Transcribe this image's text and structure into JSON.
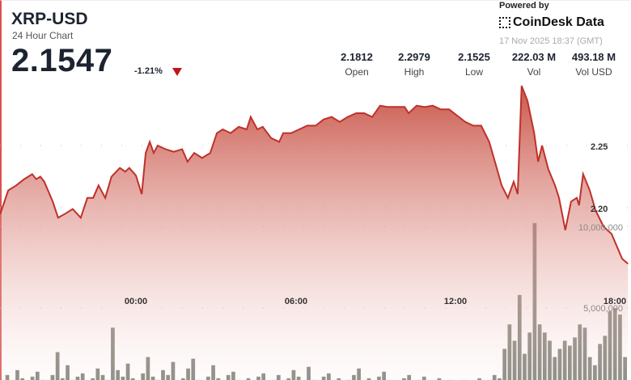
{
  "header": {
    "title": "XRP-USD",
    "subtitle": "24 Hour Chart",
    "price": "2.1547",
    "change": "-1.21%",
    "change_direction": "down",
    "change_color": "#c0161b"
  },
  "stats": [
    {
      "value": "2.1812",
      "label": "Open"
    },
    {
      "value": "2.2979",
      "label": "High"
    },
    {
      "value": "2.1525",
      "label": "Low"
    },
    {
      "value": "222.03 M",
      "label": "Vol"
    },
    {
      "value": "493.18 M",
      "label": "Vol USD"
    }
  ],
  "branding": {
    "powered_by": "Powered by",
    "name": "CoinDesk Data",
    "icon": "coindesk-logo-icon",
    "timestamp": "17 Nov 2025 18:37 (GMT)"
  },
  "chart_data": {
    "type": "area",
    "line_color": "#c0302a",
    "bar_color": "#6b6b62",
    "grid": "dotted horizontal",
    "x_ticks": [
      "00:00",
      "06:00",
      "12:00",
      "18:00"
    ],
    "price_ticks": [
      "2.25",
      "2.20"
    ],
    "volume_ticks": [
      "10,000,000",
      "5,000,000"
    ],
    "price_points": [
      [
        "2025-11-16T18:55",
        2.195
      ],
      [
        "2025-11-16T19:13",
        2.214
      ],
      [
        "2025-11-16T19:31",
        2.218
      ],
      [
        "2025-11-16T19:49",
        2.223
      ],
      [
        "2025-11-16T20:07",
        2.227
      ],
      [
        "2025-11-16T20:16",
        2.223
      ],
      [
        "2025-11-16T20:25",
        2.225
      ],
      [
        "2025-11-16T20:34",
        2.221
      ],
      [
        "2025-11-16T20:53",
        2.205
      ],
      [
        "2025-11-16T21:05",
        2.192
      ],
      [
        "2025-11-16T21:20",
        2.195
      ],
      [
        "2025-11-16T21:38",
        2.199
      ],
      [
        "2025-11-16T21:56",
        2.192
      ],
      [
        "2025-11-16T22:11",
        2.208
      ],
      [
        "2025-11-16T22:24",
        2.208
      ],
      [
        "2025-11-16T22:36",
        2.218
      ],
      [
        "2025-11-16T22:51",
        2.208
      ],
      [
        "2025-11-16T23:05",
        2.225
      ],
      [
        "2025-11-16T23:24",
        2.232
      ],
      [
        "2025-11-16T23:36",
        2.229
      ],
      [
        "2025-11-16T23:45",
        2.232
      ],
      [
        "2025-11-17T00:00",
        2.226
      ],
      [
        "2025-11-17T00:13",
        2.211
      ],
      [
        "2025-11-17T00:22",
        2.244
      ],
      [
        "2025-11-17T00:31",
        2.253
      ],
      [
        "2025-11-17T00:40",
        2.244
      ],
      [
        "2025-11-17T00:49",
        2.25
      ],
      [
        "2025-11-17T01:07",
        2.247
      ],
      [
        "2025-11-17T01:25",
        2.245
      ],
      [
        "2025-11-17T01:44",
        2.247
      ],
      [
        "2025-11-17T01:56",
        2.237
      ],
      [
        "2025-11-17T02:11",
        2.244
      ],
      [
        "2025-11-17T02:29",
        2.24
      ],
      [
        "2025-11-17T02:47",
        2.244
      ],
      [
        "2025-11-17T03:02",
        2.26
      ],
      [
        "2025-11-17T03:15",
        2.263
      ],
      [
        "2025-11-17T03:33",
        2.26
      ],
      [
        "2025-11-17T03:51",
        2.265
      ],
      [
        "2025-11-17T04:09",
        2.263
      ],
      [
        "2025-11-17T04:18",
        2.273
      ],
      [
        "2025-11-17T04:33",
        2.263
      ],
      [
        "2025-11-17T04:45",
        2.265
      ],
      [
        "2025-11-17T05:04",
        2.256
      ],
      [
        "2025-11-17T05:22",
        2.253
      ],
      [
        "2025-11-17T05:31",
        2.26
      ],
      [
        "2025-11-17T05:49",
        2.26
      ],
      [
        "2025-11-17T06:07",
        2.263
      ],
      [
        "2025-11-17T06:25",
        2.266
      ],
      [
        "2025-11-17T06:44",
        2.266
      ],
      [
        "2025-11-17T07:02",
        2.271
      ],
      [
        "2025-11-17T07:20",
        2.273
      ],
      [
        "2025-11-17T07:38",
        2.269
      ],
      [
        "2025-11-17T07:56",
        2.273
      ],
      [
        "2025-11-17T08:15",
        2.276
      ],
      [
        "2025-11-17T08:33",
        2.276
      ],
      [
        "2025-11-17T08:51",
        2.273
      ],
      [
        "2025-11-17T09:09",
        2.282
      ],
      [
        "2025-11-17T09:27",
        2.281
      ],
      [
        "2025-11-17T09:45",
        2.281
      ],
      [
        "2025-11-17T10:04",
        2.281
      ],
      [
        "2025-11-17T10:13",
        2.276
      ],
      [
        "2025-11-17T10:31",
        2.282
      ],
      [
        "2025-11-17T10:49",
        2.281
      ],
      [
        "2025-11-17T11:07",
        2.282
      ],
      [
        "2025-11-17T11:25",
        2.279
      ],
      [
        "2025-11-17T11:44",
        2.279
      ],
      [
        "2025-11-17T12:02",
        2.274
      ],
      [
        "2025-11-17T12:20",
        2.269
      ],
      [
        "2025-11-17T12:38",
        2.266
      ],
      [
        "2025-11-17T12:56",
        2.266
      ],
      [
        "2025-11-17T13:14",
        2.253
      ],
      [
        "2025-11-17T13:27",
        2.237
      ],
      [
        "2025-11-17T13:42",
        2.218
      ],
      [
        "2025-11-17T13:56",
        2.208
      ],
      [
        "2025-11-17T14:09",
        2.221
      ],
      [
        "2025-11-17T14:18",
        2.211
      ],
      [
        "2025-11-17T14:27",
        2.298
      ],
      [
        "2025-11-17T14:40",
        2.286
      ],
      [
        "2025-11-17T14:55",
        2.26
      ],
      [
        "2025-11-17T15:04",
        2.237
      ],
      [
        "2025-11-17T15:13",
        2.25
      ],
      [
        "2025-11-17T15:27",
        2.231
      ],
      [
        "2025-11-17T15:42",
        2.218
      ],
      [
        "2025-11-17T15:51",
        2.208
      ],
      [
        "2025-11-17T16:05",
        2.182
      ],
      [
        "2025-11-17T16:18",
        2.205
      ],
      [
        "2025-11-17T16:31",
        2.208
      ],
      [
        "2025-11-17T16:36",
        2.202
      ],
      [
        "2025-11-17T16:45",
        2.227
      ],
      [
        "2025-11-17T17:00",
        2.214
      ],
      [
        "2025-11-17T17:13",
        2.198
      ],
      [
        "2025-11-17T17:31",
        2.185
      ],
      [
        "2025-11-17T17:49",
        2.179
      ],
      [
        "2025-11-17T18:13",
        2.159
      ],
      [
        "2025-11-17T18:26",
        2.155
      ]
    ],
    "price_range": [
      2.15,
      2.31
    ],
    "volumes": [
      600000,
      900000,
      500000,
      1200000,
      700000,
      400000,
      800000,
      1100000,
      600000,
      500000,
      900000,
      2300000,
      700000,
      1500000,
      600000,
      800000,
      1000000,
      500000,
      700000,
      1300000,
      900000,
      600000,
      3800000,
      1200000,
      800000,
      1600000,
      700000,
      500000,
      1000000,
      2000000,
      800000,
      600000,
      1200000,
      900000,
      1700000,
      500000,
      700000,
      1300000,
      1900000,
      600000,
      400000,
      800000,
      1500000,
      700000,
      500000,
      900000,
      1100000,
      600000,
      300000,
      700000,
      500000,
      800000,
      1000000,
      400000,
      600000,
      900000,
      500000,
      700000,
      1200000,
      800000,
      500000,
      1400000,
      600000,
      400000,
      800000,
      1000000,
      500000,
      700000,
      300000,
      600000,
      900000,
      1300000,
      500000,
      700000,
      400000,
      800000,
      1100000,
      600000,
      500000,
      300000,
      700000,
      900000,
      400000,
      600000,
      800000,
      500000,
      300000,
      700000,
      400000,
      600000,
      500000,
      300000,
      600000,
      400000,
      500000,
      700000,
      300000,
      600000,
      900000,
      700000,
      2500000,
      4000000,
      3000000,
      5800000,
      2200000,
      3500000,
      10200000,
      4000000,
      3500000,
      3000000,
      2000000,
      2500000,
      3000000,
      2700000,
      3200000,
      4000000,
      3800000,
      2000000,
      1500000,
      2800000,
      3300000,
      4800000,
      5000000,
      4600000,
      2000000
    ],
    "volume_range": [
      0,
      10000000
    ]
  }
}
